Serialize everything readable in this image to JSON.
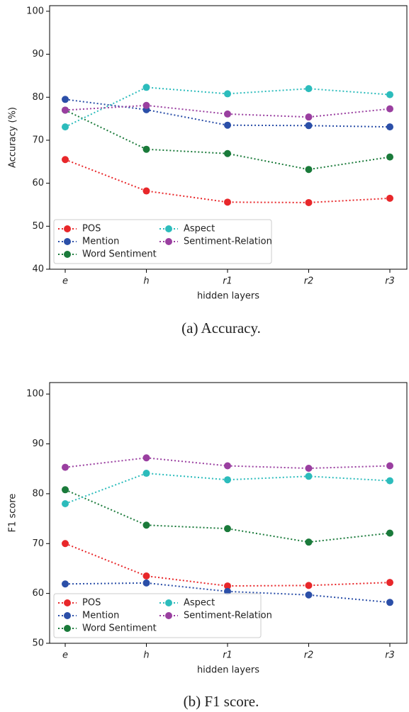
{
  "chart_data": [
    {
      "type": "line",
      "caption": "(a) Accuracy.",
      "x_label": "hidden layers",
      "y_label": "Accuracy (%)",
      "categories": [
        "e",
        "h",
        "r1",
        "r2",
        "r3"
      ],
      "ylim": [
        40,
        101.3
      ],
      "yticks": [
        40,
        50,
        60,
        70,
        80,
        90,
        100
      ],
      "grid": false,
      "legend": "lower left",
      "series": [
        {
          "name": "POS",
          "color": "#e8272a",
          "values": [
            65.5,
            58.2,
            55.6,
            55.5,
            56.5
          ]
        },
        {
          "name": "Mention",
          "color": "#2b4fa8",
          "values": [
            79.5,
            77.1,
            73.5,
            73.4,
            73.1
          ]
        },
        {
          "name": "Word Sentiment",
          "color": "#1a7a3a",
          "values": [
            77,
            67.9,
            66.9,
            63.2,
            66.1
          ]
        },
        {
          "name": "Aspect",
          "color": "#2cbcbc",
          "values": [
            73.1,
            82.3,
            80.8,
            82,
            80.6
          ]
        },
        {
          "name": "Sentiment-Relation",
          "color": "#9a3fa0",
          "values": [
            77,
            78.1,
            76.1,
            75.4,
            77.3
          ]
        }
      ]
    },
    {
      "type": "line",
      "caption": "(b) F1 score.",
      "x_label": "hidden layers",
      "y_label": "F1 score",
      "categories": [
        "e",
        "h",
        "r1",
        "r2",
        "r3"
      ],
      "ylim": [
        50,
        102.3
      ],
      "yticks": [
        50,
        60,
        70,
        80,
        90,
        100
      ],
      "grid": false,
      "legend": "lower left",
      "series": [
        {
          "name": "POS",
          "color": "#e8272a",
          "values": [
            70,
            63.5,
            61.5,
            61.6,
            62.2
          ]
        },
        {
          "name": "Mention",
          "color": "#2b4fa8",
          "values": [
            61.9,
            62.1,
            60.4,
            59.7,
            58.2
          ]
        },
        {
          "name": "Word Sentiment",
          "color": "#1a7a3a",
          "values": [
            80.8,
            73.7,
            73,
            70.3,
            72.1
          ]
        },
        {
          "name": "Aspect",
          "color": "#2cbcbc",
          "values": [
            78,
            84.1,
            82.8,
            83.5,
            82.6
          ]
        },
        {
          "name": "Sentiment-Relation",
          "color": "#9a3fa0",
          "values": [
            85.3,
            87.2,
            85.6,
            85.1,
            85.6
          ]
        }
      ]
    }
  ]
}
